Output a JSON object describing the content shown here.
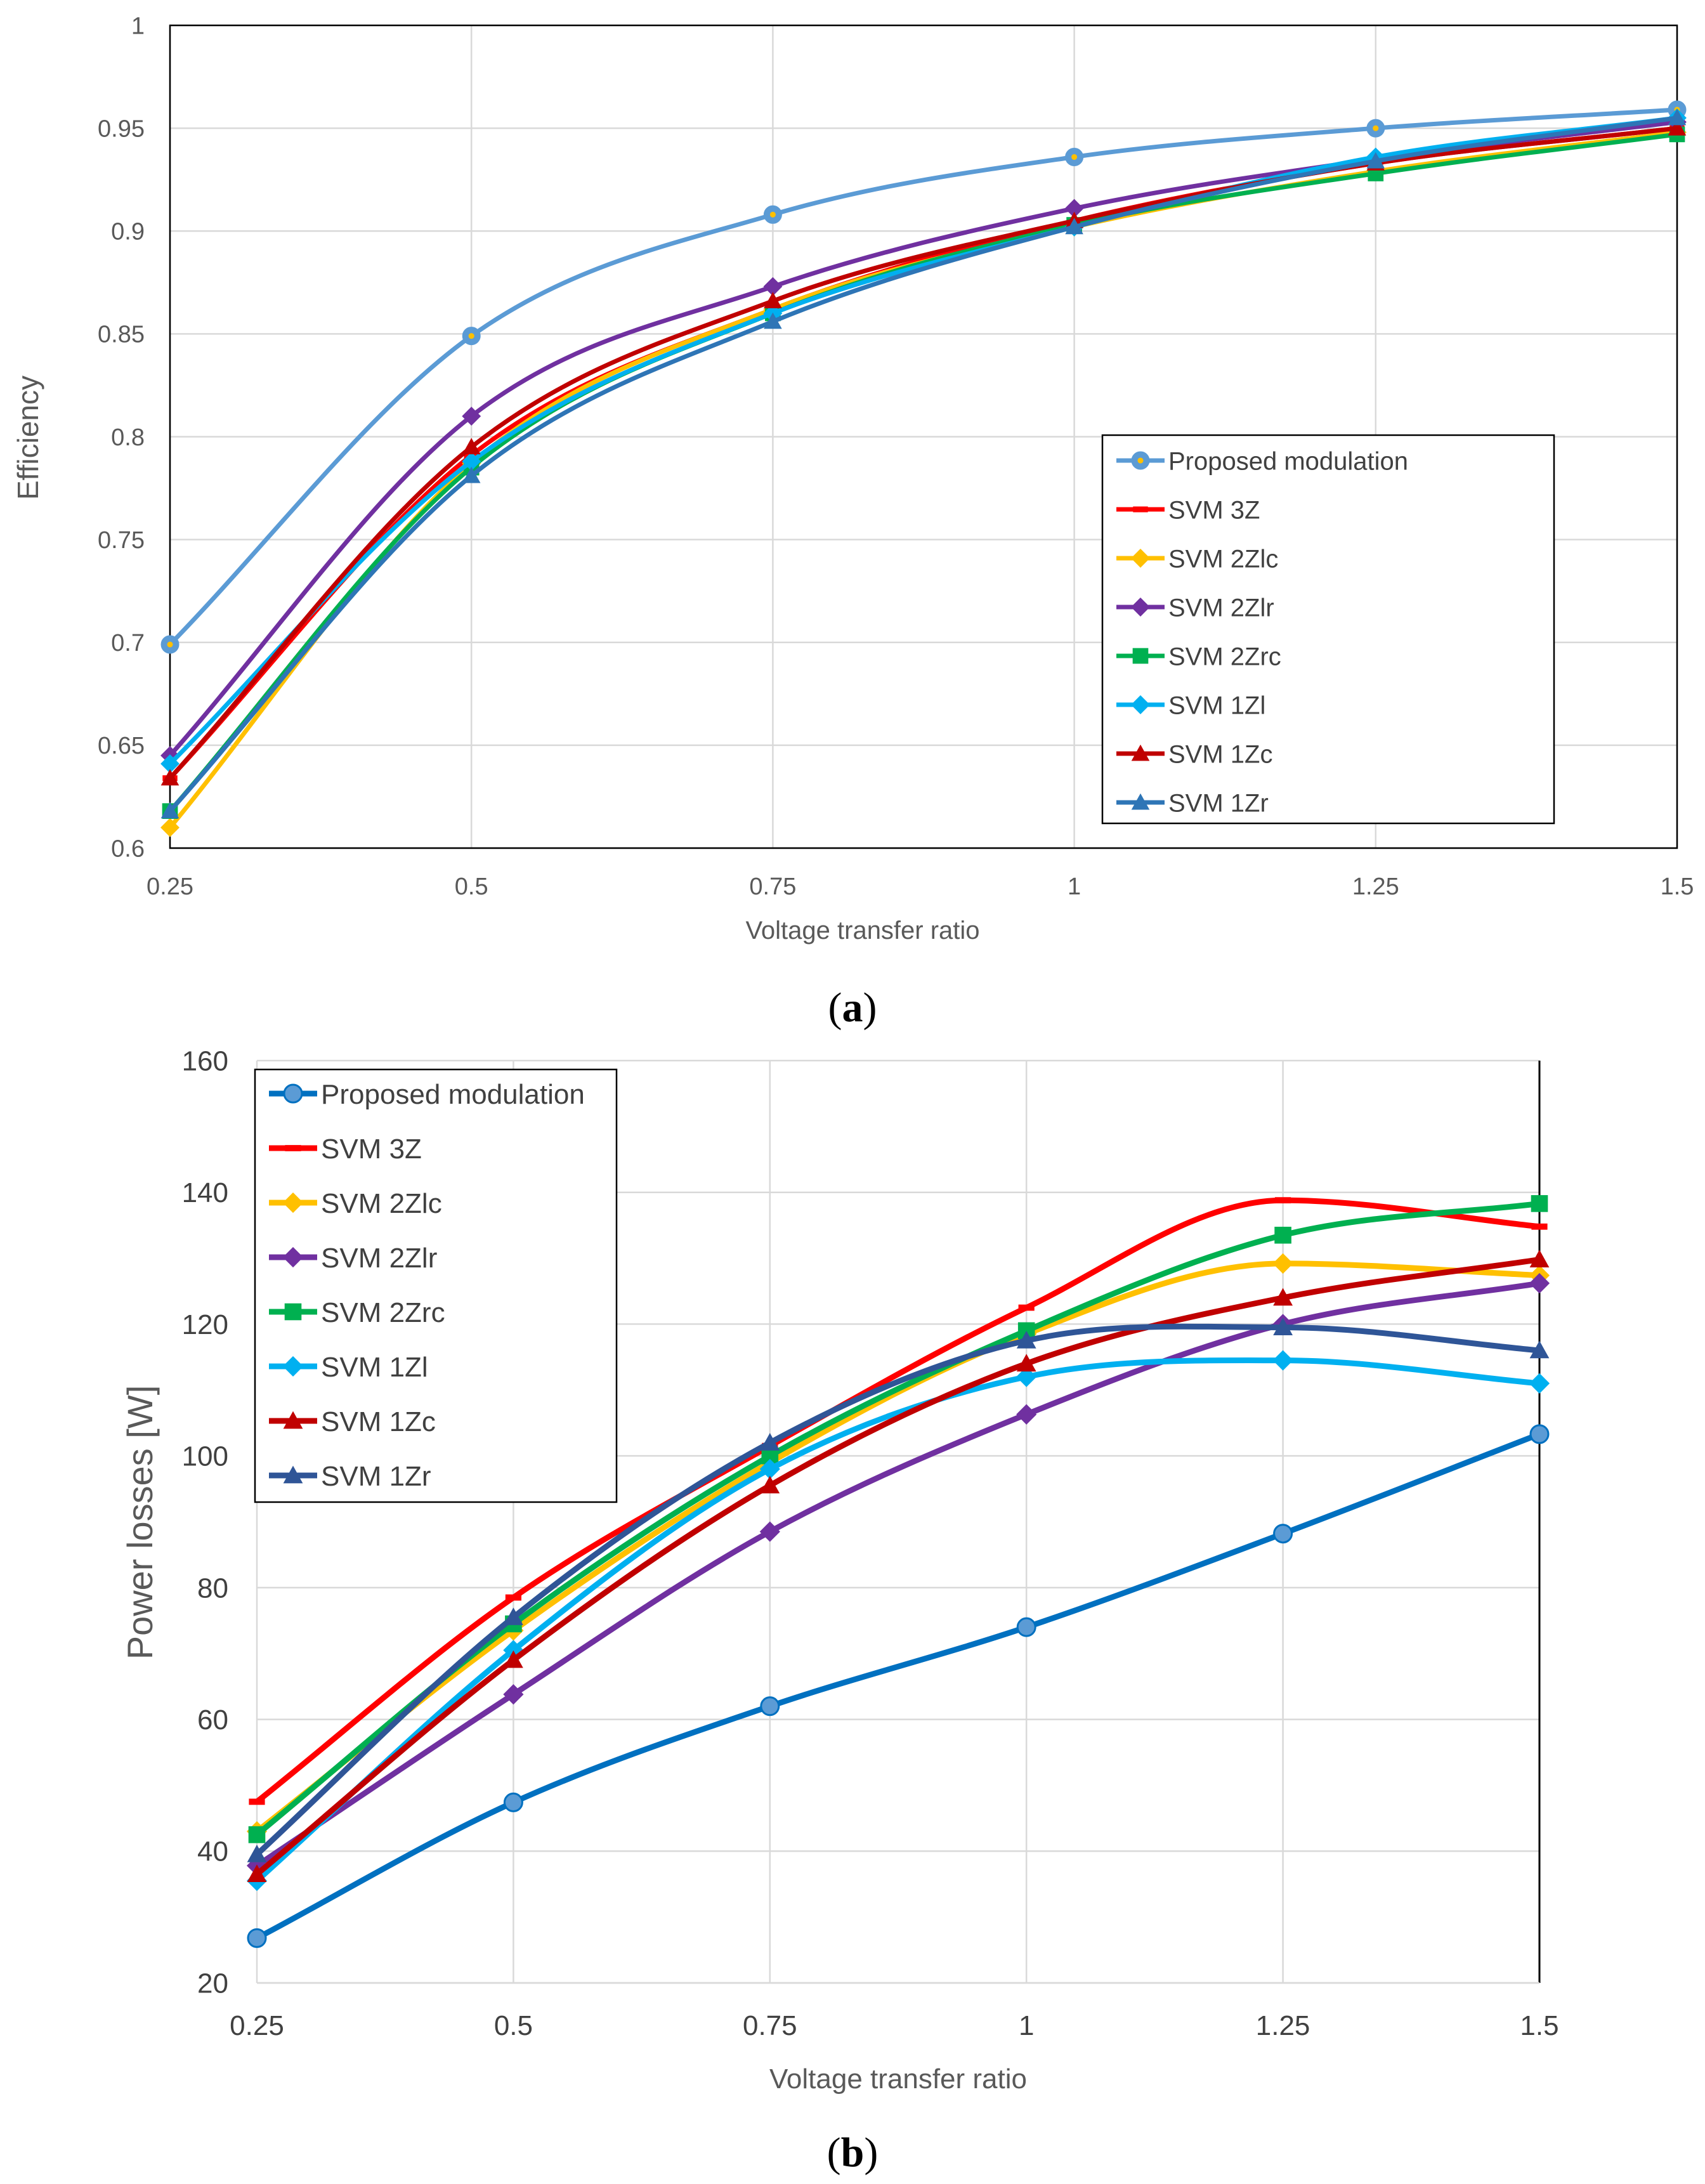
{
  "chart_data": [
    {
      "type": "line",
      "panel": "(a)",
      "panel_paren_open": "(",
      "panel_letter": "a",
      "panel_paren_close": ")",
      "title": "",
      "xlabel": "Voltage transfer ratio",
      "ylabel": "Efficiency",
      "x": [
        0.25,
        0.5,
        0.75,
        1,
        1.25,
        1.5
      ],
      "xticks": [
        "0.25",
        "0.5",
        "0.75",
        "1",
        "1.25",
        "1.5"
      ],
      "ylim": [
        0.6,
        1
      ],
      "yticks": [
        "0.6",
        "0.65",
        "0.7",
        "0.75",
        "0.8",
        "0.85",
        "0.9",
        "0.95",
        "1"
      ],
      "grid": true,
      "legend_position": "center-right",
      "series": [
        {
          "name": "Proposed modulation",
          "color": "#5B9BD5",
          "marker": "circle-dot",
          "values": [
            0.699,
            0.849,
            0.908,
            0.936,
            0.95,
            0.959
          ]
        },
        {
          "name": "SVM 3Z",
          "color": "#FF0000",
          "marker": "dash",
          "values": [
            0.634,
            0.791,
            0.862,
            0.905,
            0.933,
            0.95
          ]
        },
        {
          "name": "SVM 2Zlc",
          "color": "#FFC000",
          "marker": "diamond",
          "values": [
            0.61,
            0.787,
            0.862,
            0.902,
            0.929,
            0.948
          ]
        },
        {
          "name": "SVM 2Zlr",
          "color": "#7030A0",
          "marker": "diamond",
          "values": [
            0.645,
            0.81,
            0.873,
            0.911,
            0.935,
            0.953
          ]
        },
        {
          "name": "SVM 2Zrc",
          "color": "#00B050",
          "marker": "square",
          "values": [
            0.618,
            0.785,
            0.86,
            0.903,
            0.928,
            0.947
          ]
        },
        {
          "name": "SVM 1Zl",
          "color": "#00B0F0",
          "marker": "diamond",
          "values": [
            0.641,
            0.788,
            0.86,
            0.902,
            0.936,
            0.955
          ]
        },
        {
          "name": "SVM 1Zc",
          "color": "#C00000",
          "marker": "triangle",
          "values": [
            0.634,
            0.795,
            0.866,
            0.905,
            0.933,
            0.95
          ]
        },
        {
          "name": "SVM 1Zr",
          "color": "#2E75B6",
          "marker": "triangle",
          "values": [
            0.618,
            0.781,
            0.856,
            0.902,
            0.934,
            0.955
          ]
        }
      ]
    },
    {
      "type": "line",
      "panel": "(b)",
      "panel_paren_open": "(",
      "panel_letter": "b",
      "panel_paren_close": ")",
      "title": "",
      "xlabel": "Voltage transfer ratio",
      "ylabel": "Power losses [W]",
      "x": [
        0.25,
        0.5,
        0.75,
        1,
        1.25,
        1.5
      ],
      "xticks": [
        "0.25",
        "0.5",
        "0.75",
        "1",
        "1.25",
        "1.5"
      ],
      "ylim": [
        20,
        160
      ],
      "yticks": [
        "20",
        "40",
        "60",
        "80",
        "100",
        "120",
        "140",
        "160"
      ],
      "grid": true,
      "legend_position": "top-left",
      "series": [
        {
          "name": "Proposed modulation",
          "color": "#0070C0",
          "marker": "circle",
          "values": [
            26.8,
            47.4,
            62.0,
            74.0,
            88.2,
            103.3
          ]
        },
        {
          "name": "SVM 3Z",
          "color": "#FF0000",
          "marker": "dash",
          "values": [
            47.5,
            78.5,
            101.5,
            122.5,
            138.8,
            134.8
          ]
        },
        {
          "name": "SVM 2Zlc",
          "color": "#FFC000",
          "marker": "diamond",
          "values": [
            43.0,
            73.5,
            99.0,
            118.5,
            129.2,
            127.4
          ]
        },
        {
          "name": "SVM 2Zlr",
          "color": "#7030A0",
          "marker": "diamond",
          "values": [
            37.8,
            63.8,
            88.5,
            106.3,
            120.0,
            126.2
          ]
        },
        {
          "name": "SVM 2Zrc",
          "color": "#00B050",
          "marker": "square",
          "values": [
            42.5,
            74.5,
            100.0,
            119.0,
            133.5,
            138.3
          ]
        },
        {
          "name": "SVM 1Zl",
          "color": "#00B0F0",
          "marker": "diamond",
          "values": [
            35.5,
            70.5,
            98.0,
            112.0,
            114.5,
            111.0
          ]
        },
        {
          "name": "SVM 1Zc",
          "color": "#C00000",
          "marker": "triangle",
          "values": [
            36.5,
            69.0,
            95.5,
            114.0,
            124.0,
            129.8
          ]
        },
        {
          "name": "SVM 1Zr",
          "color": "#2F5597",
          "marker": "triangle",
          "values": [
            39.5,
            75.5,
            102.0,
            117.5,
            119.5,
            116.0
          ]
        }
      ]
    }
  ]
}
